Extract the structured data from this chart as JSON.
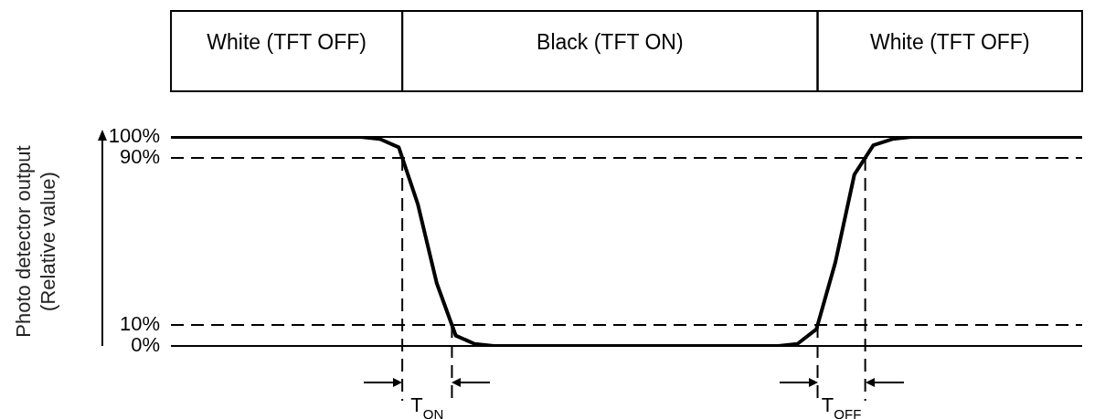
{
  "chart_data": {
    "type": "line",
    "ylabel": "Photo detector output\n(Relative value)",
    "ylim": [
      0,
      100
    ],
    "yticks": [
      {
        "value": 0,
        "label": "0%"
      },
      {
        "value": 10,
        "label": "10%"
      },
      {
        "value": 90,
        "label": "90%"
      },
      {
        "value": 100,
        "label": "100%"
      }
    ],
    "tick_labels": "y",
    "grid": false,
    "legend": false,
    "marker": "none",
    "line_style": "solid",
    "categories": [
      null,
      null,
      null,
      null,
      null,
      null,
      null,
      null,
      null,
      null,
      null,
      null,
      null,
      null,
      null,
      null,
      null,
      null,
      null,
      null,
      null,
      null,
      null,
      null,
      null,
      null,
      null,
      null,
      null,
      null,
      null,
      null,
      null,
      null,
      null,
      null,
      null,
      null,
      null,
      null,
      null,
      null,
      null,
      null,
      null,
      null,
      null,
      null,
      null
    ],
    "series": [
      {
        "color": "#000000",
        "values": [
          100,
          100,
          100,
          100,
          100,
          100,
          100,
          100,
          100,
          100,
          100,
          99,
          95,
          68,
          30,
          5,
          1,
          0,
          0,
          0,
          0,
          0,
          0,
          0,
          0,
          0,
          0,
          0,
          0,
          0,
          0,
          0,
          0,
          1,
          8,
          40,
          82,
          96,
          99,
          100,
          100,
          100,
          100,
          100,
          100,
          100,
          100,
          100,
          100
        ]
      }
    ],
    "ref_lines": [
      {
        "axis": "y",
        "value": 100,
        "line_style": "solid",
        "color": "#000000"
      },
      {
        "axis": "y",
        "value": 90,
        "line_style": "dashed",
        "color": "#000000"
      },
      {
        "axis": "y",
        "value": 10,
        "line_style": "dashed",
        "color": "#000000"
      },
      {
        "axis": "y",
        "value": 0,
        "line_style": "solid",
        "color": "#000000"
      }
    ],
    "annotations": [
      "White (TFT OFF)",
      "Black (TFT ON)",
      "White (TFT OFF)",
      "T$_{ON}$",
      "T$_{OFF}$"
    ]
  }
}
